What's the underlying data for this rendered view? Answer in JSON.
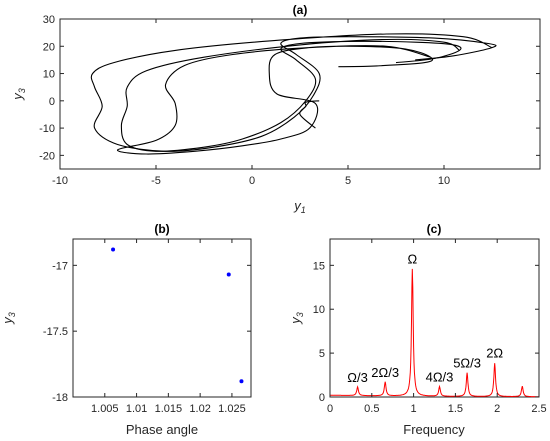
{
  "chart_data": [
    {
      "panel": "a",
      "type": "line",
      "title": "(a)",
      "xlabel_base": "y",
      "xlabel_sub": "1",
      "ylabel_base": "y",
      "ylabel_sub": "3",
      "xlim": [
        -10,
        15
      ],
      "ylim": [
        -25,
        30
      ],
      "xticks": [
        -10,
        -5,
        0,
        5,
        10
      ],
      "yticks": [
        -20,
        -10,
        0,
        10,
        20,
        30
      ],
      "line_color": "#000000",
      "series": [
        {
          "x": [
            8.5,
            10.5,
            12.5,
            12.3,
            9.5,
            5,
            2.5,
            1.5,
            2.3,
            3.5,
            3.2,
            2.2,
            0.5,
            -2,
            -4.5,
            -7,
            -8.2,
            -7.8,
            -8.2,
            -8.3,
            -7.2,
            -4,
            1,
            7,
            11,
            12.5
          ],
          "y": [
            15,
            16.5,
            19.5,
            21,
            23,
            23.5,
            23,
            21,
            17,
            10,
            2,
            -6,
            -13,
            -17,
            -18.5,
            -16,
            -10,
            -2,
            5,
            10,
            14,
            18.5,
            22,
            24.5,
            23.5,
            19.5
          ]
        },
        {
          "x": [
            7.5,
            9.5,
            10.8,
            10.5,
            8.5,
            5,
            2.5,
            1.5,
            2.3,
            3.3,
            2.8,
            1.5,
            -0.5,
            -2.5,
            -5,
            -6.5,
            -6.8,
            -6.5,
            -6.5,
            -5.5,
            -2.5,
            2.5,
            7,
            10,
            10.8
          ],
          "y": [
            14,
            15.5,
            18.5,
            20.5,
            21.5,
            21.8,
            21,
            19,
            15,
            8,
            0,
            -8,
            -14,
            -17,
            -18.5,
            -16,
            -9,
            -2,
            5,
            11,
            16,
            20.5,
            22.5,
            21.5,
            18.5
          ]
        },
        {
          "x": [
            4.5,
            6.5,
            9,
            9.3,
            8,
            5.5,
            3,
            1.2,
            0.9,
            1.3,
            3.3,
            3,
            1.5,
            -0.5,
            -3,
            -5.5,
            -7,
            -5,
            -4,
            -4,
            -4.5,
            -3.5,
            -1,
            3,
            7,
            9.3
          ],
          "y": [
            12.5,
            12.8,
            14,
            16,
            19,
            20,
            19.5,
            17,
            10,
            2.5,
            -1,
            -10,
            -14,
            -16.5,
            -18.5,
            -19.5,
            -18,
            -14.5,
            -9,
            -1,
            6,
            13,
            17,
            19.5,
            20,
            16
          ]
        },
        {
          "x": [
            3.5,
            2.8,
            2.8,
            2.5,
            3.3
          ],
          "y": [
            0,
            -0.5,
            -2,
            -5,
            -10
          ]
        }
      ]
    },
    {
      "panel": "b",
      "type": "scatter",
      "title": "(b)",
      "xlabel": "Phase angle",
      "ylabel_base": "y",
      "ylabel_sub": "3",
      "xlim": [
        1.0,
        1.028
      ],
      "ylim": [
        -18.0,
        -16.8
      ],
      "xticks": [
        1.005,
        1.01,
        1.015,
        1.02,
        1.025
      ],
      "xtick_labels": [
        "1.005",
        "1.01",
        "1.015",
        "1.02",
        "1.025"
      ],
      "yticks": [
        -18,
        -17.5,
        -17
      ],
      "ytick_labels": [
        "-18",
        "-17.5",
        "-17"
      ],
      "marker_color": "#0000ff",
      "x": [
        1.0063,
        1.0245,
        1.0265
      ],
      "y": [
        -16.88,
        -17.07,
        -17.88
      ]
    },
    {
      "panel": "c",
      "type": "line",
      "title": "(c)",
      "xlabel": "Frequency",
      "ylabel_base": "y",
      "ylabel_sub": "3",
      "xlim": [
        0,
        2.5
      ],
      "ylim": [
        0,
        18
      ],
      "xticks": [
        0,
        0.5,
        1,
        1.5,
        2,
        2.5
      ],
      "xtick_labels": [
        "0",
        "0.5",
        "1",
        "1.5",
        "2",
        "2.5"
      ],
      "yticks": [
        0,
        5,
        10,
        15
      ],
      "line_color": "#ff0000",
      "baseline": 0.2,
      "peaks": [
        {
          "x": 0.33,
          "y": 1.0,
          "label": "Ω/3"
        },
        {
          "x": 0.66,
          "y": 1.6,
          "label": "2Ω/3"
        },
        {
          "x": 0.985,
          "y": 14.5,
          "label": "Ω"
        },
        {
          "x": 1.31,
          "y": 1.1,
          "label": "4Ω/3"
        },
        {
          "x": 1.64,
          "y": 2.7,
          "label": "5Ω/3"
        },
        {
          "x": 1.97,
          "y": 3.8,
          "label": "2Ω"
        },
        {
          "x": 2.3,
          "y": 1.2,
          "label": ""
        }
      ]
    }
  ]
}
